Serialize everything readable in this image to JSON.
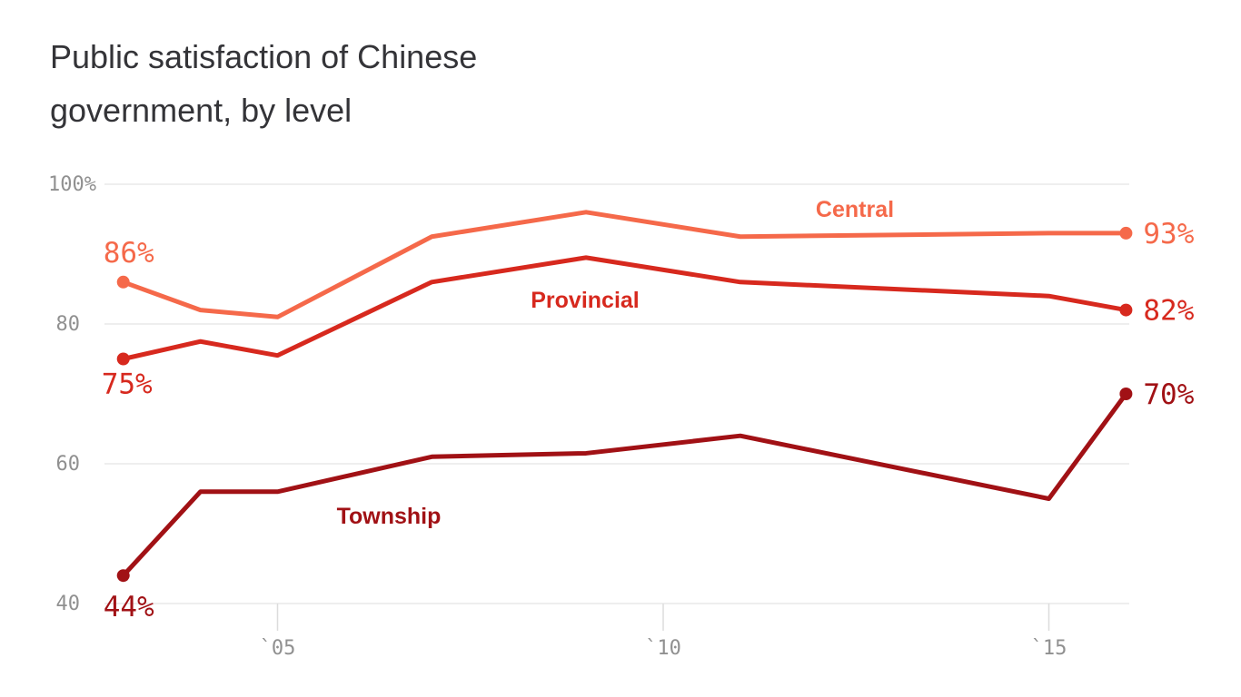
{
  "title": {
    "text": "Public satisfaction of Chinese government, by level",
    "lines": [
      "Public satisfaction of Chinese",
      "government, by level"
    ]
  },
  "colors": {
    "background": "#FFFFFF",
    "title": "#343438",
    "axis_labels": "#909090",
    "gridline": "#E9E9E9",
    "tick": "#DCDCDC"
  },
  "chart_data": {
    "type": "line",
    "title": "Public satisfaction of Chinese government, by level",
    "xlabel": "",
    "ylabel": "",
    "x": [
      2003,
      2004,
      2005,
      2007,
      2009,
      2011,
      2015,
      2016
    ],
    "xlim": [
      2003,
      2016
    ],
    "ylim": [
      40,
      100
    ],
    "grid": "horizontal",
    "legend_position": "inline-labels",
    "x_tick_labels": [
      "`05",
      "`10",
      "`15"
    ],
    "x_tick_years": [
      2005,
      2010,
      2015
    ],
    "y_tick_labels": [
      "100%",
      "80",
      "60",
      "40"
    ],
    "y_tick_values": [
      100,
      80,
      60,
      40
    ],
    "series": [
      {
        "name": "Central",
        "color": "#F5694A",
        "values": [
          86,
          82,
          81,
          92.5,
          96,
          92.5,
          93,
          93
        ],
        "start_label": "86%",
        "end_label": "93%"
      },
      {
        "name": "Provincial",
        "color": "#D7291E",
        "values": [
          75,
          77.5,
          75.5,
          86,
          89.5,
          86,
          84,
          82
        ],
        "start_label": "75%",
        "end_label": "82%"
      },
      {
        "name": "Township",
        "color": "#A11115",
        "values": [
          44,
          56,
          56,
          61,
          61.5,
          64,
          55,
          70
        ],
        "start_label": "44%",
        "end_label": "70%"
      }
    ]
  }
}
